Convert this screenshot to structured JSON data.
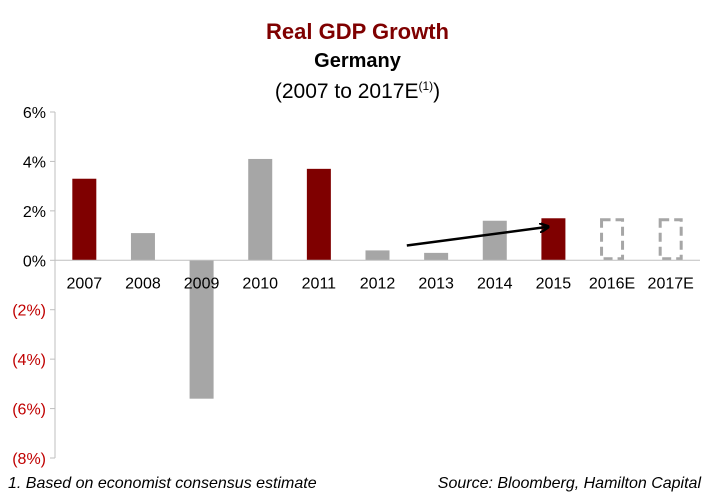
{
  "chart_data": {
    "type": "bar",
    "title": "Real GDP Growth",
    "subtitle": "Germany",
    "range_label": "(2007 to 2017E",
    "range_sup": "(1)",
    "range_close": ")",
    "categories": [
      "2007",
      "2008",
      "2009",
      "2010",
      "2011",
      "2012",
      "2013",
      "2014",
      "2015",
      "2016E",
      "2017E"
    ],
    "values": [
      3.3,
      1.1,
      -5.6,
      4.1,
      3.7,
      0.4,
      0.3,
      1.6,
      1.7,
      1.7,
      1.7
    ],
    "bar_styles": [
      "highlight",
      "normal",
      "normal",
      "normal",
      "highlight",
      "normal",
      "normal",
      "normal",
      "highlight",
      "estimate",
      "estimate"
    ],
    "ylim": [
      -8,
      6
    ],
    "yticks": [
      6,
      4,
      2,
      0,
      -2,
      -4,
      -6,
      -8
    ],
    "ytick_labels": [
      "6%",
      "4%",
      "2%",
      "0%",
      "(2%)",
      "(4%)",
      "(6%)",
      "(8%)"
    ],
    "colors": {
      "highlight": "#7f0000",
      "normal": "#a6a6a6",
      "estimate": "#a6a6a6",
      "negative_label": "#c00000",
      "axis": "#bfbfbf"
    },
    "annotation": "arrow from 2013 toward 2015",
    "footnote": "1. Based on economist consensus estimate",
    "source": "Source: Bloomberg, Hamilton Capital"
  }
}
